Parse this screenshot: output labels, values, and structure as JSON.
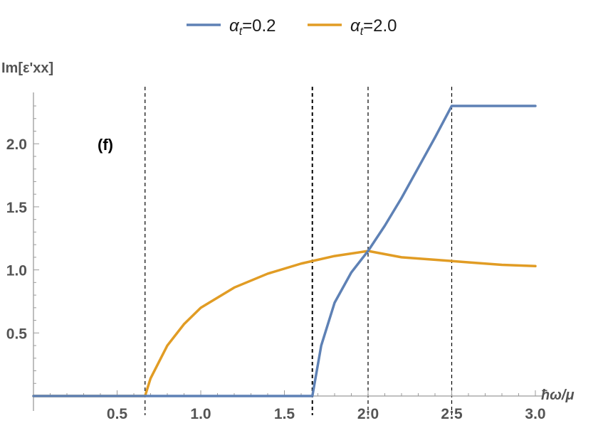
{
  "chart_data": {
    "type": "line",
    "xlabel": "ħω/μ",
    "ylabel": "Im[ε'xx]",
    "annotation": "(f)",
    "xlim": [
      0,
      3.0
    ],
    "ylim": [
      0,
      2.3
    ],
    "x_ticks": [
      0.5,
      1.0,
      1.5,
      2.0,
      2.5,
      3.0
    ],
    "x_tick_labels": [
      "0.5",
      "1.0",
      "1.5",
      "2:0",
      "2:5",
      "3.0"
    ],
    "y_ticks": [
      0.5,
      1.0,
      1.5,
      2.0
    ],
    "y_tick_labels": [
      "0.5",
      "1.0",
      "1.5",
      "2.0"
    ],
    "vertical_dashed_lines": [
      0.667,
      1.667,
      2.0,
      2.5
    ],
    "legend_position": "top",
    "series": [
      {
        "name": "αt=0.2",
        "label_base": "α",
        "label_sub": "t",
        "label_value": "=0.2",
        "color": "#5e81b5",
        "x": [
          0,
          0.667,
          1.667,
          1.72,
          1.8,
          1.9,
          2.0,
          2.1,
          2.2,
          2.3,
          2.4,
          2.5,
          2.7,
          2.9,
          3.0
        ],
        "y": [
          0,
          0,
          0,
          0.4,
          0.74,
          0.98,
          1.15,
          1.35,
          1.57,
          1.81,
          2.05,
          2.3,
          2.3,
          2.3,
          2.3
        ]
      },
      {
        "name": "αt=2.0",
        "label_base": "α",
        "label_sub": "t",
        "label_value": "=2.0",
        "color": "#e19c24",
        "x": [
          0,
          0.667,
          0.7,
          0.8,
          0.9,
          1.0,
          1.2,
          1.4,
          1.6,
          1.8,
          2.0,
          2.2,
          2.4,
          2.6,
          2.8,
          3.0
        ],
        "y": [
          0,
          0,
          0.14,
          0.4,
          0.57,
          0.7,
          0.86,
          0.97,
          1.05,
          1.11,
          1.15,
          1.1,
          1.08,
          1.06,
          1.04,
          1.03
        ]
      }
    ]
  }
}
